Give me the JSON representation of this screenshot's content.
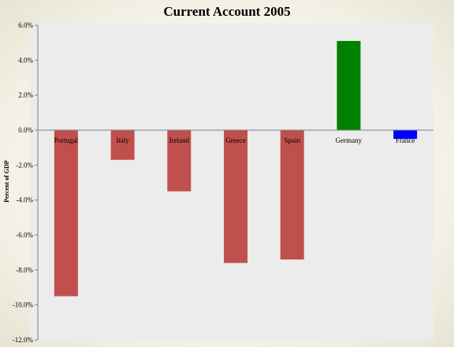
{
  "chart_data": {
    "type": "bar",
    "title": "Current Account 2005",
    "xlabel": "",
    "ylabel": "Percent of GDP",
    "ylim": [
      -12,
      6
    ],
    "yticks": [
      "6.0%",
      "4.0%",
      "2.0%",
      "0.0%",
      "-2.0%",
      "-4.0%",
      "-6.0%",
      "-8.0%",
      "-10.0%",
      "-12.0%"
    ],
    "ytick_values": [
      6,
      4,
      2,
      0,
      -2,
      -4,
      -6,
      -8,
      -10,
      -12
    ],
    "categories": [
      "Portugal",
      "Italy",
      "Ireland",
      "Greece",
      "Spain",
      "Germany",
      "France"
    ],
    "values": [
      -9.5,
      -1.7,
      -3.5,
      -7.6,
      -7.4,
      5.1,
      -0.5
    ],
    "colors": [
      "#c0504d",
      "#c0504d",
      "#c0504d",
      "#c0504d",
      "#c0504d",
      "#008000",
      "#0000ff"
    ],
    "grid": false,
    "legend": "none"
  }
}
